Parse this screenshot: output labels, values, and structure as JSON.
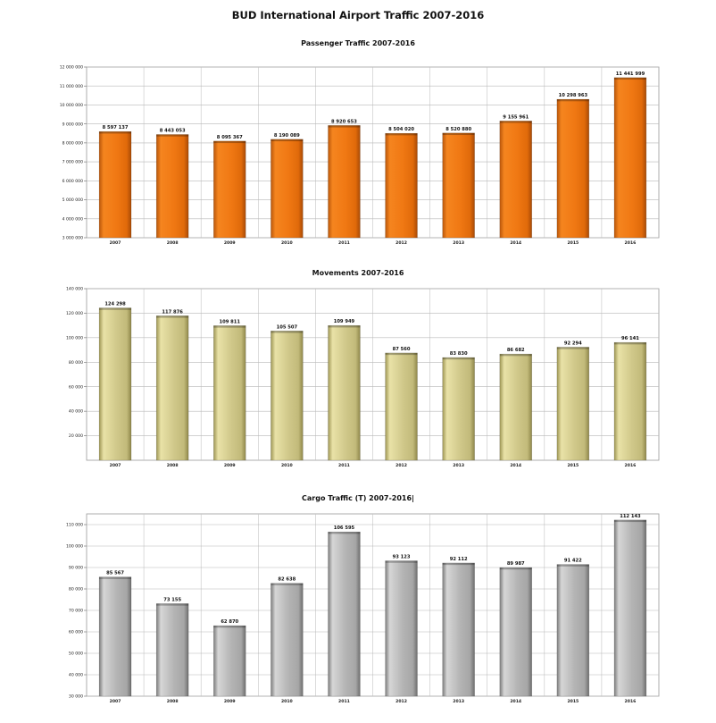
{
  "page_title": "BUD International Airport Traffic 2007-2016",
  "chart_data": [
    {
      "type": "bar",
      "title": "Passenger Traffic 2007-2016",
      "categories": [
        "2007",
        "2008",
        "2009",
        "2010",
        "2011",
        "2012",
        "2013",
        "2014",
        "2015",
        "2016"
      ],
      "values": [
        8597137,
        8443053,
        8095367,
        8190089,
        8920653,
        8504020,
        8520880,
        9155961,
        10298963,
        11441999
      ],
      "value_labels": [
        "8 597 137",
        "8 443 053",
        "8 095 367",
        "8 190 089",
        "8 920 653",
        "8 504 020",
        "8 520 880",
        "9 155 961",
        "10 298 963",
        "11 441 999"
      ],
      "ylim": [
        3000000,
        12000000
      ],
      "yticks": [
        3000000,
        4000000,
        5000000,
        6000000,
        7000000,
        8000000,
        9000000,
        10000000,
        11000000,
        12000000
      ],
      "ytick_labels": [
        "3 000 000",
        "4 000 000",
        "5 000 000",
        "6 000 000",
        "7 000 000",
        "8 000 000",
        "9 000 000",
        "10 000 000",
        "11 000 000",
        "12 000 000"
      ],
      "xlabel": "",
      "ylabel": "",
      "grid": true,
      "bar_color": "#f07813"
    },
    {
      "type": "bar",
      "title": "Movements 2007-2016",
      "categories": [
        "2007",
        "2008",
        "2009",
        "2010",
        "2011",
        "2012",
        "2013",
        "2014",
        "2015",
        "2016"
      ],
      "values": [
        124298,
        117876,
        109811,
        105507,
        109949,
        87560,
        83830,
        86682,
        92294,
        96141
      ],
      "value_labels": [
        "124 298",
        "117 876",
        "109 811",
        "105 507",
        "109 949",
        "87 560",
        "83 830",
        "86 682",
        "92 294",
        "96 141"
      ],
      "ylim": [
        0,
        140000
      ],
      "yticks": [
        20000,
        40000,
        60000,
        80000,
        100000,
        120000,
        140000
      ],
      "ytick_labels": [
        "20 000",
        "40 000",
        "60 000",
        "80 000",
        "100 000",
        "120 000",
        "140 000"
      ],
      "xlabel": "",
      "ylabel": "",
      "grid": true,
      "bar_color": "#d0c88a"
    },
    {
      "type": "bar",
      "title": "Cargo Traffic (T) 2007-2016|",
      "categories": [
        "2007",
        "2008",
        "2009",
        "2010",
        "2011",
        "2012",
        "2013",
        "2014",
        "2015",
        "2016"
      ],
      "values": [
        85567,
        73155,
        62870,
        82638,
        106595,
        93123,
        92112,
        89987,
        91422,
        112143
      ],
      "value_labels": [
        "85 567",
        "73 155",
        "62 870",
        "82 638",
        "106 595",
        "93 123",
        "92 112",
        "89 987",
        "91 422",
        "112 143"
      ],
      "ylim": [
        30000,
        115000
      ],
      "yticks": [
        30000,
        40000,
        50000,
        60000,
        70000,
        80000,
        90000,
        100000,
        110000
      ],
      "ytick_labels": [
        "30 000",
        "40 000",
        "50 000",
        "60 000",
        "70 000",
        "80 000",
        "90 000",
        "100 000",
        "110 000"
      ],
      "xlabel": "",
      "ylabel": "",
      "grid": true,
      "bar_color": "#b4b4b4"
    }
  ]
}
